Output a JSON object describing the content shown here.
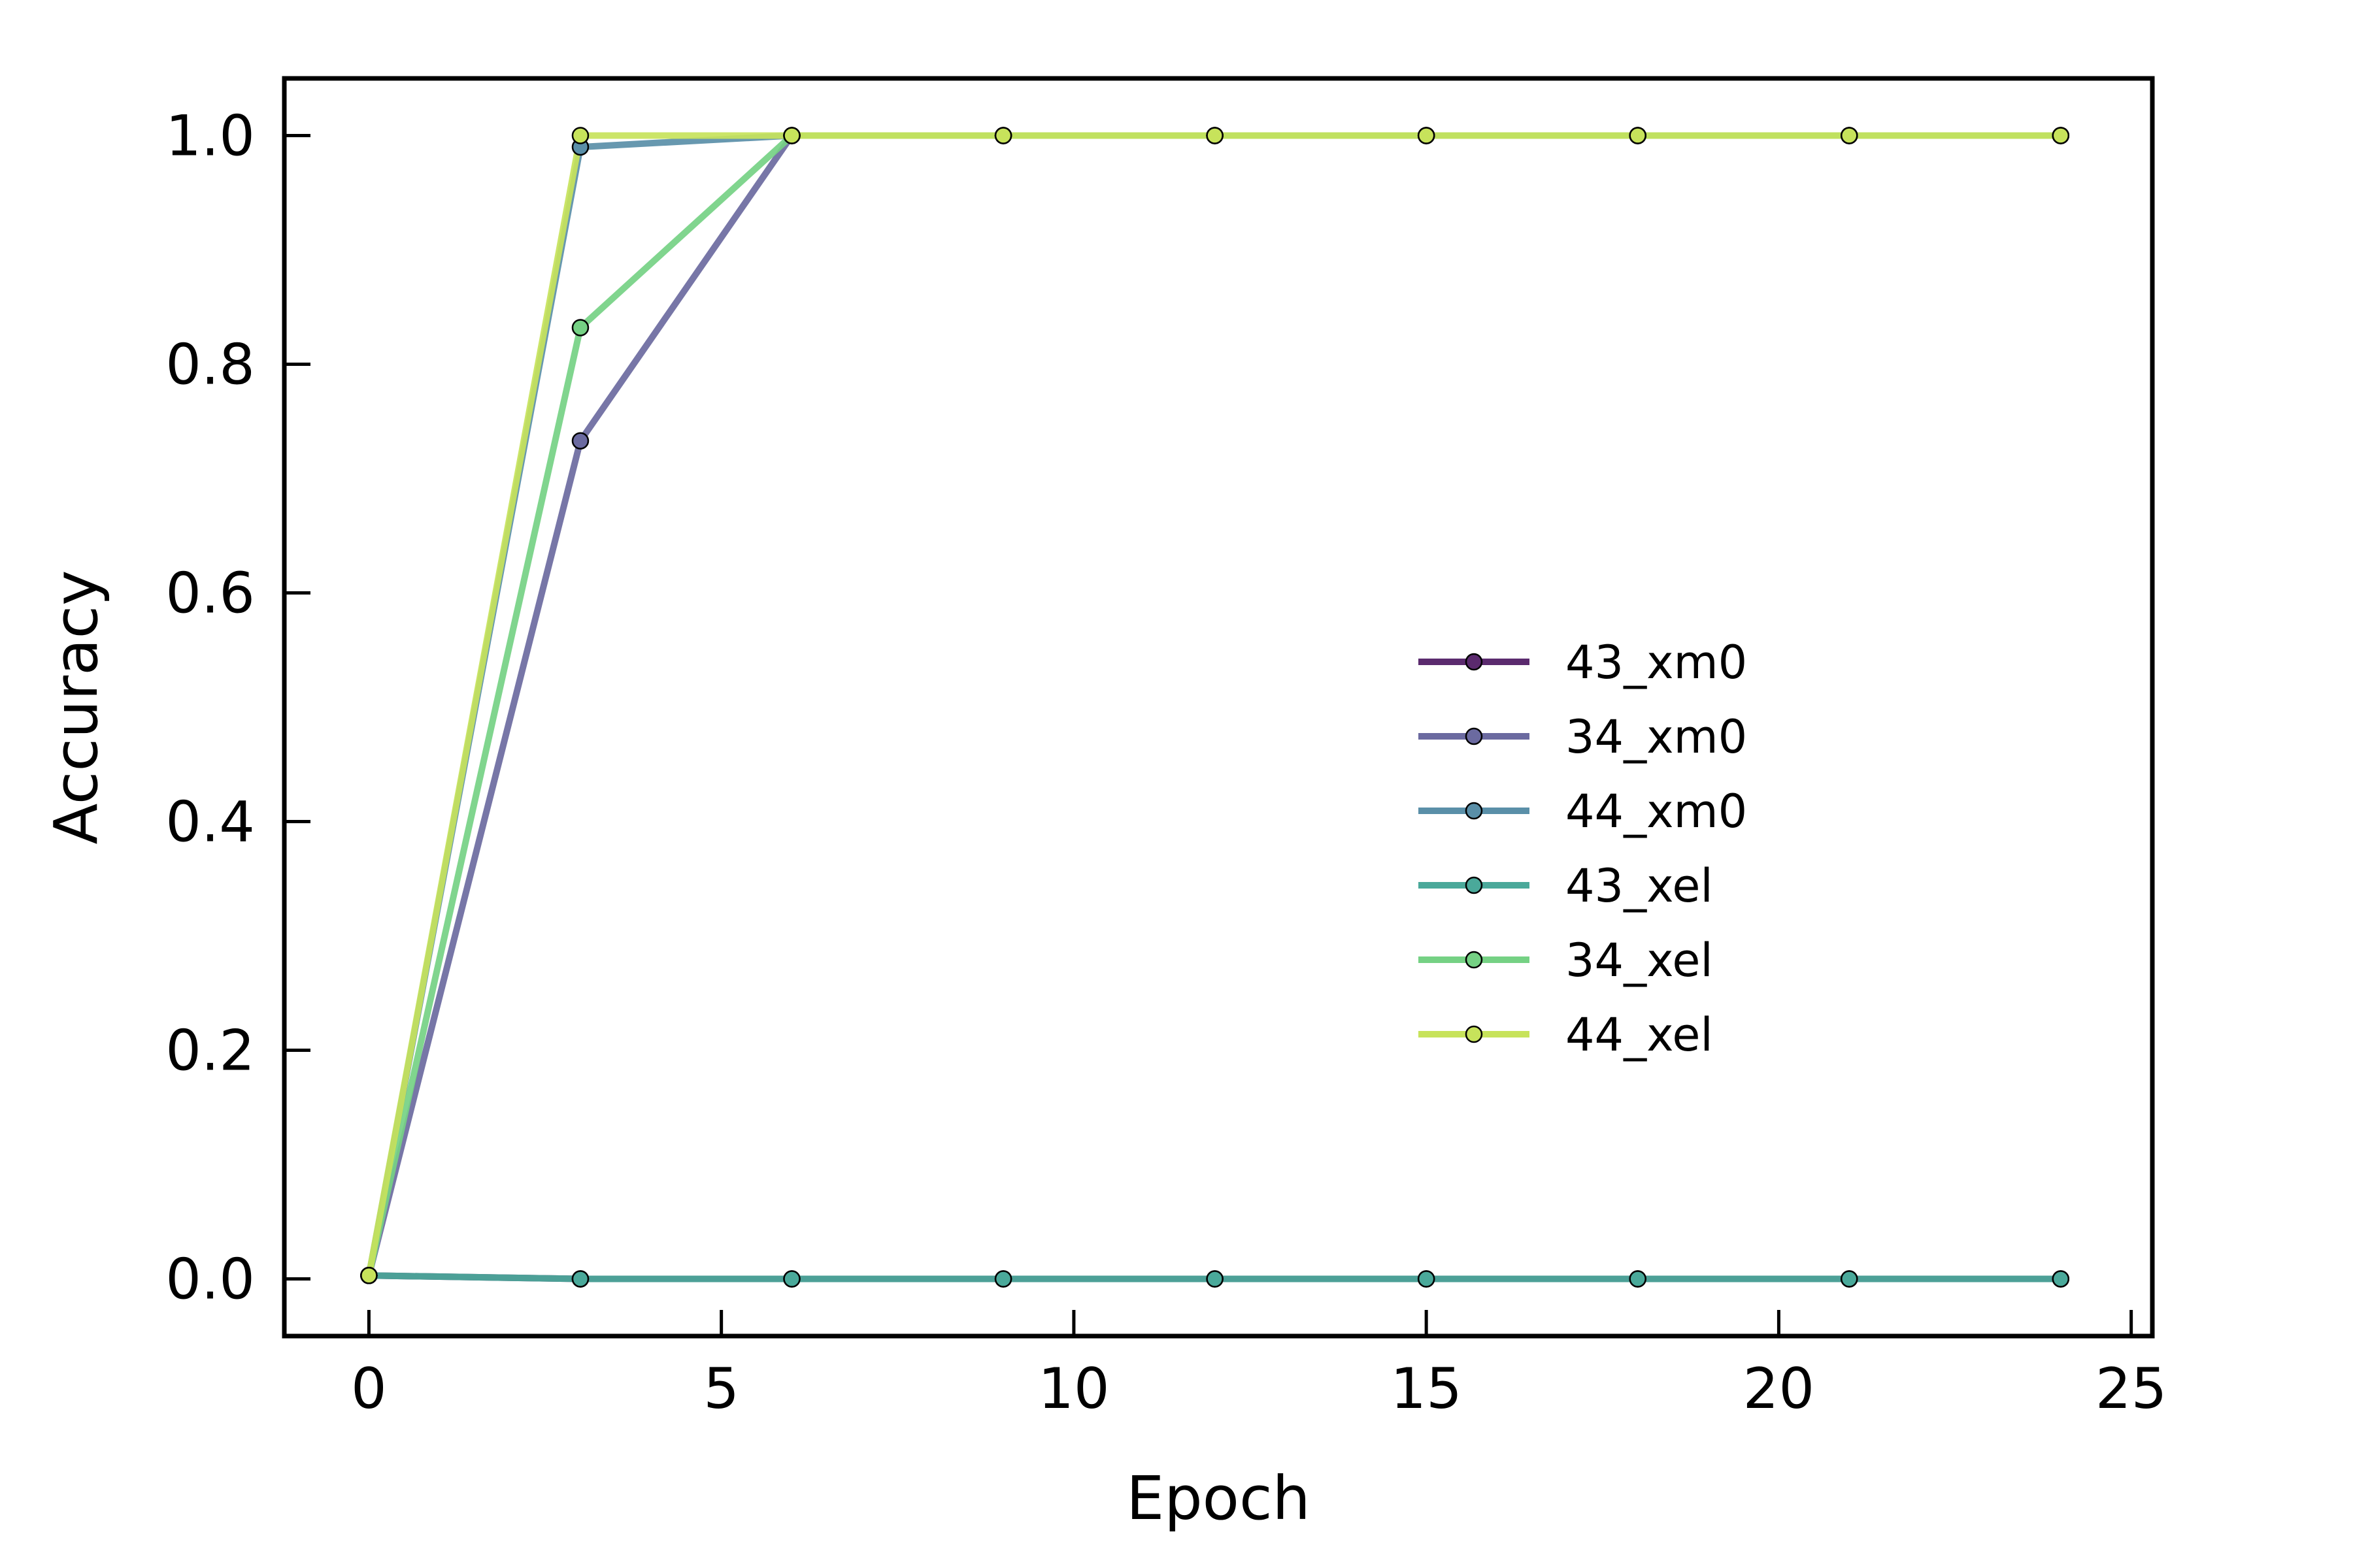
{
  "chart_data": {
    "type": "line",
    "title": "",
    "xlabel": "Epoch",
    "ylabel": "Accuracy",
    "xlim": [
      -1.2,
      25.3
    ],
    "ylim": [
      -0.05,
      1.05
    ],
    "xticks": [
      0,
      5,
      10,
      15,
      20,
      25
    ],
    "xtick_labels": [
      "0",
      "5",
      "10",
      "15",
      "20",
      "25"
    ],
    "yticks": [
      0.0,
      0.2,
      0.4,
      0.6,
      0.8,
      1.0
    ],
    "ytick_labels": [
      "0.0",
      "0.2",
      "0.4",
      "0.6",
      "0.8",
      "1.0"
    ],
    "grid": false,
    "legend_position": "center-right",
    "x": [
      0,
      3,
      6,
      9,
      12,
      15,
      18,
      21,
      24
    ],
    "series": [
      {
        "name": "43_xm0",
        "color": "#5b2a6e",
        "values": [
          0.003,
          0.0,
          0.0,
          0.0,
          0.0,
          0.0,
          0.0,
          0.0,
          0.0
        ]
      },
      {
        "name": "34_xm0",
        "color": "#6b6aa0",
        "values": [
          0.003,
          0.733,
          1.0,
          1.0,
          1.0,
          1.0,
          1.0,
          1.0,
          1.0
        ]
      },
      {
        "name": "44_xm0",
        "color": "#5a8fa8",
        "values": [
          0.003,
          0.99,
          1.0,
          1.0,
          1.0,
          1.0,
          1.0,
          1.0,
          1.0
        ]
      },
      {
        "name": "43_xel",
        "color": "#4aa99a",
        "values": [
          0.003,
          0.0,
          0.0,
          0.0,
          0.0,
          0.0,
          0.0,
          0.0,
          0.0
        ]
      },
      {
        "name": "34_xel",
        "color": "#75d184",
        "values": [
          0.003,
          0.832,
          1.0,
          1.0,
          1.0,
          1.0,
          1.0,
          1.0,
          1.0
        ]
      },
      {
        "name": "44_xel",
        "color": "#c7e35b",
        "values": [
          0.003,
          1.0,
          1.0,
          1.0,
          1.0,
          1.0,
          1.0,
          1.0,
          1.0
        ]
      }
    ]
  }
}
